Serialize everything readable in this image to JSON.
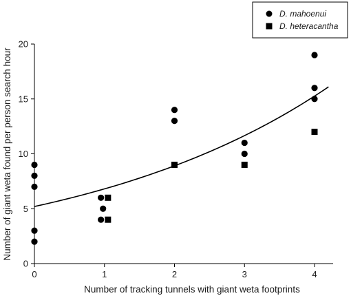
{
  "chart_data": {
    "type": "scatter",
    "xlabel": "Number of tracking tunnels with giant weta footprints",
    "ylabel": "Number of giant weta found per person search hour",
    "xlim": [
      0,
      4.3
    ],
    "ylim": [
      0,
      20
    ],
    "x_ticks": [
      "0",
      "1",
      "2",
      "3",
      "4"
    ],
    "y_ticks": [
      "0",
      "5",
      "10",
      "15",
      "20"
    ],
    "grid": false,
    "legend_position": "top-right",
    "series": [
      {
        "name": "D. mahoenui",
        "marker": "circle",
        "color": "#000000",
        "points": [
          [
            0,
            9
          ],
          [
            0,
            8
          ],
          [
            0,
            7
          ],
          [
            0,
            3
          ],
          [
            0,
            2
          ],
          [
            0.95,
            6
          ],
          [
            0.98,
            5
          ],
          [
            0.95,
            4
          ],
          [
            2,
            14
          ],
          [
            2,
            13
          ],
          [
            3,
            11
          ],
          [
            3,
            10
          ],
          [
            4,
            19
          ],
          [
            4,
            16
          ],
          [
            4,
            15
          ]
        ]
      },
      {
        "name": "D. heteracantha",
        "marker": "square",
        "color": "#000000",
        "points": [
          [
            1.05,
            6
          ],
          [
            1.05,
            4
          ],
          [
            2,
            9
          ],
          [
            3,
            9
          ],
          [
            4,
            12
          ]
        ]
      }
    ],
    "fit_curve": {
      "type": "exponential",
      "x_range": [
        0,
        4.2
      ],
      "y0": 5.2,
      "y_end": 16.1
    }
  }
}
